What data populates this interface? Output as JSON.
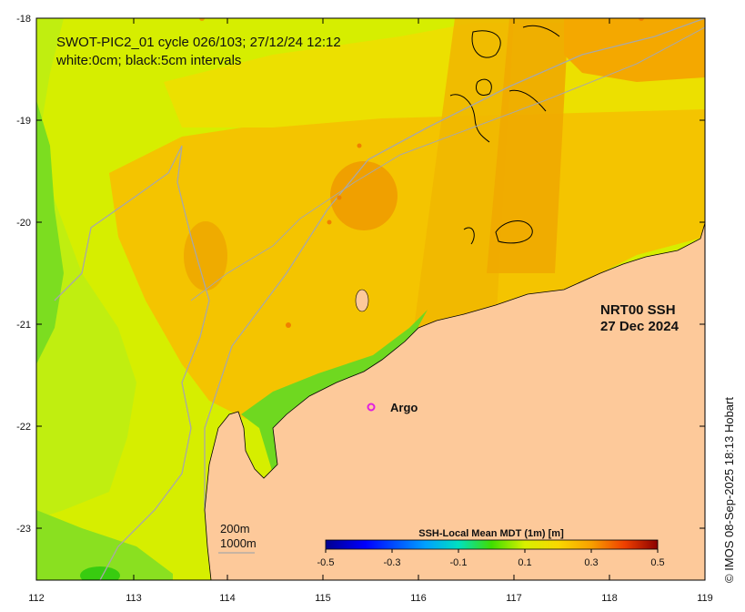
{
  "header": {
    "title": "SWOT-PIC2_01 cycle 026/103; 27/12/24 12:12",
    "subtitle": "white:0cm; black:5cm intervals"
  },
  "product": {
    "name": "NRT00 SSH",
    "date": "27 Dec 2024"
  },
  "argo": {
    "label": "Argo",
    "color": "#e020e0"
  },
  "isobaths": {
    "depth_1": "200m",
    "depth_2": "1000m"
  },
  "colorbar": {
    "title": "SSH-Local Mean MDT (1m) [m]",
    "tick_labels": [
      "-0.5",
      "-0.3",
      "-0.1",
      "0.1",
      "0.3",
      "0.5"
    ],
    "min": -0.5,
    "max": 0.5
  },
  "axes": {
    "longitude_labels": [
      "112",
      "113",
      "114",
      "115",
      "116",
      "117",
      "118",
      "119"
    ],
    "latitude_labels": [
      "-18",
      "-19",
      "-20",
      "-21",
      "-22",
      "-23"
    ]
  },
  "copyright": "© IMOS 08-Sep-2025 18:13 Hobart",
  "colors": {
    "land": "#fdc99a",
    "ssh_high": "#f5a800",
    "ssh_mid": "#f5cd00",
    "ssh_low": "#c8f000",
    "ssh_lowest": "#44dd00",
    "isobath": "#a8a8a8"
  }
}
